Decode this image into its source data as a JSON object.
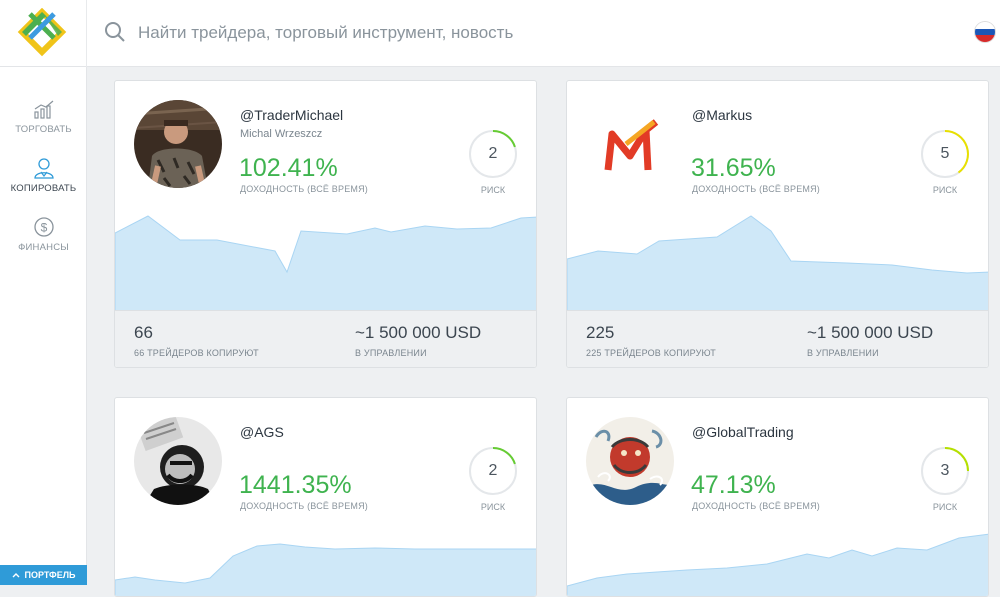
{
  "search": {
    "placeholder": "Найти трейдера, торговый инструмент, новость"
  },
  "sidebar": {
    "items": [
      {
        "label": "ТОРГОВАТЬ",
        "icon": "chart-icon"
      },
      {
        "label": "КОПИРОВАТЬ",
        "icon": "user-icon"
      },
      {
        "label": "ФИНАНСЫ",
        "icon": "dollar-icon"
      }
    ],
    "portfolio_label": "ПОРТФЕЛЬ"
  },
  "colors": {
    "accent": "#2f9bd8",
    "positive": "#3fb34f",
    "chart_fill": "#cfe8f8",
    "chart_line": "#a9d5f3"
  },
  "traders": [
    {
      "handle": "@TraderMichael",
      "name": "Michal Wrzeszcz",
      "return": "102.41%",
      "return_label": "ДОХОДНОСТЬ (ВСЁ ВРЕМЯ)",
      "risk": "2",
      "risk_label": "РИСК",
      "copiers": "66",
      "copiers_label": "66 ТРЕЙДЕРОВ КОПИРУЮТ",
      "aum": "~1 500 000 USD",
      "aum_label": "В УПРАВЛЕНИИ"
    },
    {
      "handle": "@Markus",
      "name": "",
      "return": "31.65%",
      "return_label": "ДОХОДНОСТЬ (ВСЁ ВРЕМЯ)",
      "risk": "5",
      "risk_label": "РИСК",
      "copiers": "225",
      "copiers_label": "225 ТРЕЙДЕРОВ КОПИРУЮТ",
      "aum": "~1 500 000 USD",
      "aum_label": "В УПРАВЛЕНИИ"
    },
    {
      "handle": "@AGS",
      "name": "",
      "return": "1441.35%",
      "return_label": "ДОХОДНОСТЬ (ВСЁ ВРЕМЯ)",
      "risk": "2",
      "risk_label": "РИСК"
    },
    {
      "handle": "@GlobalTrading",
      "name": "",
      "return": "47.13%",
      "return_label": "ДОХОДНОСТЬ (ВСЁ ВРЕМЯ)",
      "risk": "3",
      "risk_label": "РИСК"
    }
  ]
}
